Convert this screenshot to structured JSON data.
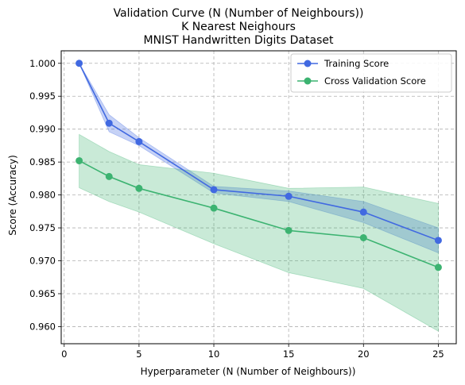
{
  "chart_data": {
    "type": "line",
    "title_lines": [
      "Validation Curve (N (Number of Neighbours))",
      "K Nearest Neighours",
      "MNIST Handwritten Digits Dataset"
    ],
    "xlabel": "Hyperparameter (N (Number of Neighbours))",
    "ylabel": "Score (Accuracy)",
    "xlim": [
      -0.2,
      26.2
    ],
    "ylim": [
      0.9574,
      1.0019
    ],
    "xticks": [
      0,
      5,
      10,
      15,
      20,
      25
    ],
    "xtick_labels": [
      "0",
      "5",
      "10",
      "15",
      "20",
      "25"
    ],
    "yticks": [
      0.96,
      0.965,
      0.97,
      0.975,
      0.98,
      0.985,
      0.99,
      0.995,
      1.0
    ],
    "ytick_labels": [
      "0.960",
      "0.965",
      "0.970",
      "0.975",
      "0.980",
      "0.985",
      "0.990",
      "0.995",
      "1.000"
    ],
    "grid": true,
    "legend_position": "top-right",
    "x": [
      1,
      3,
      5,
      10,
      15,
      20,
      25
    ],
    "series": [
      {
        "name": "Training Score",
        "color": "#4169e1",
        "values": [
          1.0,
          0.9909,
          0.9881,
          0.9808,
          0.9798,
          0.9774,
          0.9731
        ],
        "band_upper": [
          1.0,
          0.9922,
          0.9887,
          0.9813,
          0.9806,
          0.979,
          0.975
        ],
        "band_lower": [
          1.0,
          0.9896,
          0.9875,
          0.9803,
          0.979,
          0.9758,
          0.9712
        ]
      },
      {
        "name": "Cross Validation Score",
        "color": "#3cb371",
        "values": [
          0.9852,
          0.9828,
          0.981,
          0.978,
          0.9746,
          0.9735,
          0.969
        ],
        "band_upper": [
          0.9892,
          0.9866,
          0.9846,
          0.9833,
          0.981,
          0.9812,
          0.9787
        ],
        "band_lower": [
          0.9811,
          0.979,
          0.9774,
          0.9726,
          0.9682,
          0.9658,
          0.9593
        ]
      }
    ]
  }
}
